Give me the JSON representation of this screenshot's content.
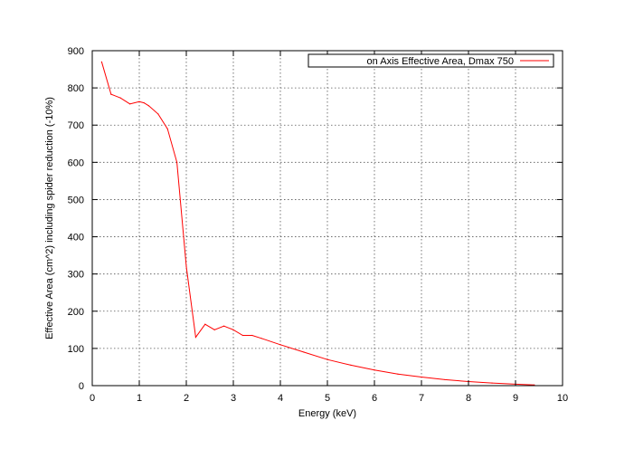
{
  "chart_data": {
    "type": "line",
    "title": "",
    "xlabel": "Energy (keV)",
    "ylabel": "Effective Area (cm^2) including spider reduction (-10%)",
    "xlim": [
      0,
      10
    ],
    "ylim": [
      0,
      900
    ],
    "xticks": [
      "0",
      "1",
      "2",
      "3",
      "4",
      "5",
      "6",
      "7",
      "8",
      "9",
      "10"
    ],
    "yticks": [
      "0",
      "100",
      "200",
      "300",
      "400",
      "500",
      "600",
      "700",
      "800",
      "900"
    ],
    "grid": true,
    "legend_position": "top-right",
    "series": [
      {
        "name": "on Axis Effective Area, Dmax 750",
        "color": "#ff0000",
        "x": [
          0.2,
          0.4,
          0.6,
          0.8,
          1.0,
          1.1,
          1.2,
          1.4,
          1.6,
          1.8,
          2.0,
          2.2,
          2.4,
          2.6,
          2.8,
          3.0,
          3.2,
          3.4,
          3.6,
          4.0,
          4.5,
          5.0,
          5.5,
          6.0,
          6.5,
          7.0,
          7.5,
          8.0,
          8.5,
          9.0,
          9.4
        ],
        "y": [
          870,
          783,
          773,
          757,
          763,
          760,
          752,
          730,
          690,
          600,
          320,
          130,
          165,
          150,
          160,
          150,
          135,
          135,
          127,
          110,
          90,
          70,
          55,
          42,
          31,
          23,
          16,
          11,
          7,
          4,
          2
        ]
      }
    ]
  }
}
